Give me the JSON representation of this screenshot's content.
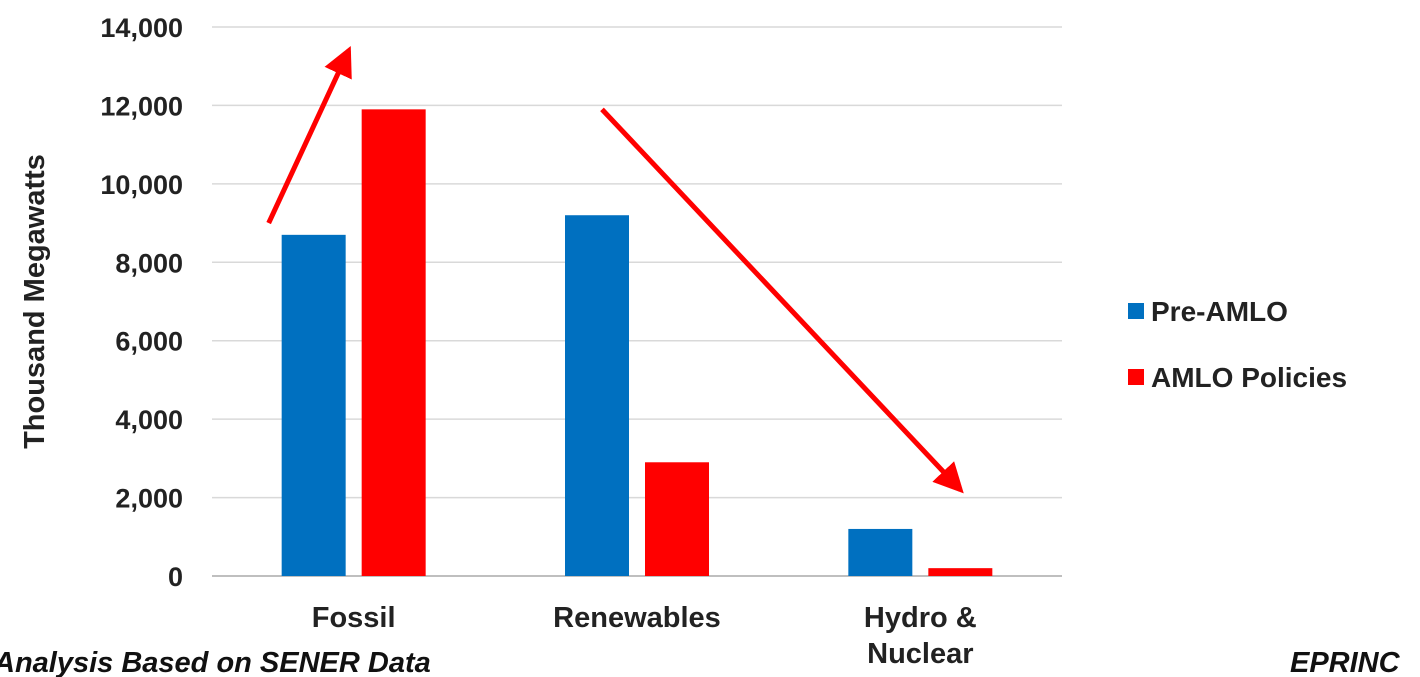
{
  "chart_data": {
    "type": "bar",
    "categories": [
      "Fossil",
      "Renewables",
      "Hydro & Nuclear"
    ],
    "category_lines": [
      [
        "Fossil"
      ],
      [
        "Renewables"
      ],
      [
        "Hydro &",
        "Nuclear"
      ]
    ],
    "series": [
      {
        "name": "Pre-AMLO",
        "color": "#0070c0",
        "values": [
          8700,
          9200,
          1200
        ]
      },
      {
        "name": "AMLO Policies",
        "color": "#ff0000",
        "values": [
          11900,
          2900,
          200
        ]
      }
    ],
    "ylabel": "Thousand Megawatts",
    "ylim": [
      0,
      14000
    ],
    "yticks": [
      0,
      2000,
      4000,
      6000,
      8000,
      10000,
      12000,
      14000
    ],
    "ytick_labels": [
      "0",
      "2,000",
      "4,000",
      "6,000",
      "8,000",
      "10,000",
      "12,000",
      "14,000"
    ],
    "grid": true,
    "legend": "right",
    "annotations": {
      "arrows": [
        {
          "from": {
            "category": "Fossil",
            "value": 9000
          },
          "to": {
            "category": "Fossil",
            "value": 13400
          },
          "color": "#ff0000"
        },
        {
          "from": {
            "category": "Renewables",
            "value": 11900
          },
          "to": {
            "category": "Hydro & Nuclear",
            "value": 2200
          },
          "color": "#ff0000"
        }
      ]
    }
  },
  "footer": {
    "source_text": "Analysis Based on SENER Data",
    "logo_text": "EPRINC"
  }
}
